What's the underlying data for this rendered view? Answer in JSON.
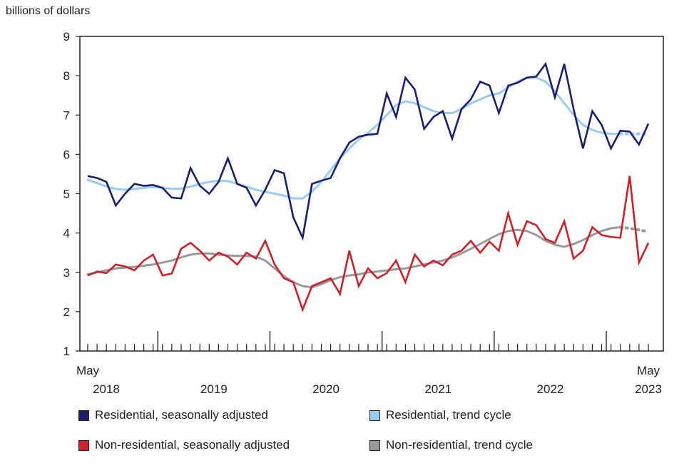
{
  "chart_data": {
    "type": "line",
    "ylabel": "billions of dollars",
    "ylim": [
      1,
      9
    ],
    "yticks": [
      "1",
      "2",
      "3",
      "4",
      "5",
      "6",
      "7",
      "8",
      "9"
    ],
    "x_start_label": [
      "May",
      "2018"
    ],
    "x_end_label": [
      "May",
      "2023"
    ],
    "year_labels": [
      "2019",
      "2020",
      "2021",
      "2022"
    ],
    "months": 61,
    "trend_actual_until_index": 57,
    "series": [
      {
        "name": "Residential, seasonally adjusted",
        "color": "#1a1f6e",
        "style": "solid",
        "values": [
          5.45,
          5.4,
          5.3,
          4.7,
          5.0,
          5.25,
          5.2,
          5.22,
          5.15,
          4.9,
          4.88,
          5.65,
          5.2,
          5.0,
          5.3,
          5.9,
          5.25,
          5.15,
          4.7,
          5.1,
          5.6,
          5.52,
          4.4,
          3.88,
          5.25,
          5.33,
          5.4,
          5.9,
          6.3,
          6.45,
          6.5,
          6.52,
          7.55,
          6.95,
          7.95,
          7.65,
          6.65,
          6.95,
          7.1,
          6.4,
          7.15,
          7.4,
          7.85,
          7.75,
          7.05,
          7.75,
          7.82,
          7.95,
          7.98,
          8.3,
          7.45,
          8.3,
          7.15,
          6.15,
          7.1,
          6.75,
          6.15,
          6.6,
          6.58,
          6.25,
          6.78
        ]
      },
      {
        "name": "Residential, trend cycle",
        "color": "#99ccee",
        "style": "solid",
        "values": [
          5.35,
          5.27,
          5.18,
          5.12,
          5.1,
          5.12,
          5.15,
          5.17,
          5.15,
          5.12,
          5.13,
          5.18,
          5.25,
          5.3,
          5.33,
          5.32,
          5.25,
          5.18,
          5.1,
          5.05,
          5.0,
          4.95,
          4.88,
          4.88,
          5.05,
          5.3,
          5.6,
          5.9,
          6.15,
          6.38,
          6.55,
          6.75,
          7.0,
          7.25,
          7.35,
          7.3,
          7.2,
          7.1,
          7.05,
          7.05,
          7.15,
          7.3,
          7.4,
          7.5,
          7.55,
          7.7,
          7.85,
          7.95,
          7.95,
          7.85,
          7.6,
          7.3,
          7.0,
          6.75,
          6.62,
          6.55,
          6.52,
          6.52,
          6.52,
          6.52,
          6.5
        ]
      },
      {
        "name": "Non-residential, seasonally adjusted",
        "color": "#cc2229",
        "style": "solid",
        "values": [
          2.92,
          3.02,
          2.98,
          3.2,
          3.15,
          3.05,
          3.3,
          3.45,
          2.92,
          2.97,
          3.6,
          3.75,
          3.55,
          3.3,
          3.5,
          3.4,
          3.2,
          3.5,
          3.35,
          3.8,
          3.2,
          2.85,
          2.75,
          2.05,
          2.65,
          2.75,
          2.85,
          2.45,
          3.55,
          2.65,
          3.1,
          2.85,
          2.98,
          3.3,
          2.75,
          3.45,
          3.15,
          3.3,
          3.18,
          3.45,
          3.55,
          3.8,
          3.5,
          3.78,
          3.55,
          4.5,
          3.7,
          4.3,
          4.2,
          3.85,
          3.75,
          4.3,
          3.35,
          3.55,
          4.15,
          3.95,
          3.9,
          3.88,
          5.45,
          3.25,
          3.75
        ]
      },
      {
        "name": "Non-residential, trend cycle",
        "color": "#999999",
        "style": "solid",
        "values": [
          2.95,
          3.0,
          3.05,
          3.1,
          3.12,
          3.14,
          3.17,
          3.2,
          3.25,
          3.3,
          3.38,
          3.45,
          3.48,
          3.48,
          3.45,
          3.43,
          3.42,
          3.42,
          3.4,
          3.3,
          3.1,
          2.9,
          2.75,
          2.65,
          2.62,
          2.7,
          2.8,
          2.88,
          2.92,
          2.95,
          3.0,
          3.02,
          3.05,
          3.08,
          3.1,
          3.15,
          3.2,
          3.25,
          3.3,
          3.38,
          3.48,
          3.6,
          3.72,
          3.85,
          3.97,
          4.05,
          4.08,
          4.05,
          3.95,
          3.8,
          3.7,
          3.65,
          3.72,
          3.82,
          3.95,
          4.05,
          4.12,
          4.15,
          4.12,
          4.08,
          4.03
        ]
      }
    ]
  }
}
